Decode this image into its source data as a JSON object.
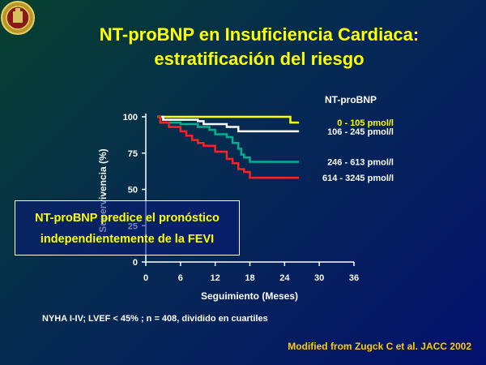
{
  "slide": {
    "title_line1": "NT-proBNP en Insuficiencia Cardiaca:",
    "title_line2": "estratificación del riesgo",
    "callout_line1": "NT-proBNP predice el pronóstico",
    "callout_line2": "independientemente de la FEVI",
    "note": "NYHA I-IV; LVEF < 45% ; n = 408, dividido en cuartiles",
    "credit": "Modified from Zugck C et al. JACC 2002"
  },
  "chart_data": {
    "type": "line",
    "title": "",
    "xlabel": "Seguimiento (Meses)",
    "ylabel": "Supervivencia (%)",
    "xlim": [
      0,
      36
    ],
    "ylim": [
      0,
      100
    ],
    "x_ticks": [
      0,
      6,
      12,
      18,
      24,
      30,
      36
    ],
    "y_ticks": [
      0,
      25,
      50,
      75,
      100
    ],
    "legend_title": "NT-proBNP",
    "step": true,
    "series": [
      {
        "name": "0 - 105 pmol/l",
        "color": "#ffff00",
        "points": [
          [
            2,
            100
          ],
          [
            25,
            100
          ],
          [
            25,
            96
          ],
          [
            26.5,
            96
          ]
        ]
      },
      {
        "name": "106 - 245 pmol/l",
        "color": "#ffffff",
        "points": [
          [
            2,
            100
          ],
          [
            3,
            98
          ],
          [
            8,
            98
          ],
          [
            9,
            97
          ],
          [
            10,
            95
          ],
          [
            14,
            93
          ],
          [
            16,
            90
          ],
          [
            26.5,
            90
          ]
        ]
      },
      {
        "name": "246 - 613 pmol/l",
        "color": "#00b090",
        "points": [
          [
            2,
            100
          ],
          [
            2.5,
            96
          ],
          [
            6,
            95
          ],
          [
            9,
            93
          ],
          [
            11,
            91
          ],
          [
            12,
            88
          ],
          [
            14,
            86
          ],
          [
            15,
            82
          ],
          [
            16,
            78
          ],
          [
            16.5,
            74
          ],
          [
            17,
            72
          ],
          [
            18,
            69
          ],
          [
            26.5,
            69
          ]
        ]
      },
      {
        "name": "614 - 3245 pmol/l",
        "color": "#ff2020",
        "points": [
          [
            2,
            100
          ],
          [
            2.5,
            96
          ],
          [
            4,
            93
          ],
          [
            6,
            90
          ],
          [
            7,
            87
          ],
          [
            8,
            84
          ],
          [
            9,
            82
          ],
          [
            10,
            80
          ],
          [
            12,
            76
          ],
          [
            14,
            71
          ],
          [
            15,
            68
          ],
          [
            16,
            64
          ],
          [
            17,
            62
          ],
          [
            18,
            58
          ],
          [
            26.5,
            58
          ]
        ]
      }
    ]
  }
}
